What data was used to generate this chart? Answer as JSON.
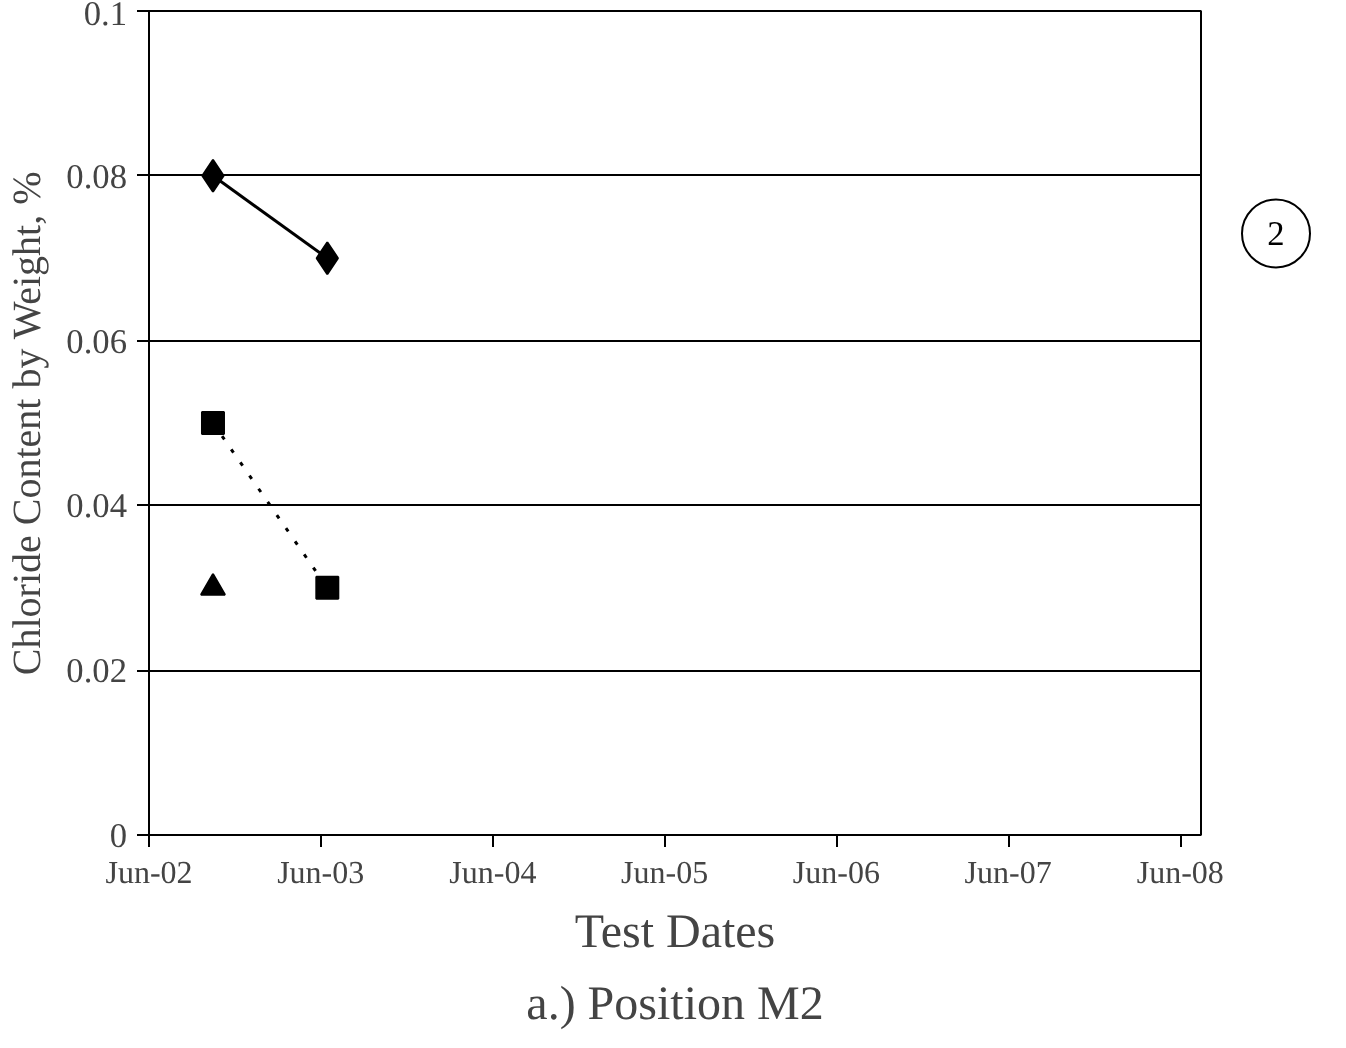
{
  "chart_data": {
    "type": "line",
    "title": "a.) Position M2",
    "xlabel": "Test Dates",
    "ylabel": "Chloride Content by Weight, %",
    "xlim": [
      "2002-06-01",
      "2008-07-15"
    ],
    "xticks": [
      {
        "value": "2002-06-01",
        "label": "Jun-02"
      },
      {
        "value": "2003-06-01",
        "label": "Jun-03"
      },
      {
        "value": "2004-06-01",
        "label": "Jun-04"
      },
      {
        "value": "2005-06-01",
        "label": "Jun-05"
      },
      {
        "value": "2006-06-01",
        "label": "Jun-06"
      },
      {
        "value": "2007-06-01",
        "label": "Jun-07"
      },
      {
        "value": "2008-06-01",
        "label": "Jun-08"
      }
    ],
    "ylim": [
      0,
      0.1
    ],
    "yticks": [
      0,
      0.02,
      0.04,
      0.06,
      0.08,
      0.1
    ],
    "grid": "y",
    "series": [
      {
        "color": "#000000",
        "marker": "diamond",
        "line_style": "solid",
        "x": [
          "2002-10-15",
          "2003-06-15"
        ],
        "values": [
          0.08,
          0.07
        ]
      },
      {
        "color": "#000000",
        "marker": "square",
        "line_style": "dotted",
        "x": [
          "2002-10-15",
          "2003-06-15"
        ],
        "values": [
          0.05,
          0.03
        ]
      },
      {
        "type": "scatter",
        "color": "#000000",
        "marker": "triangle",
        "x": [
          "2002-10-15"
        ],
        "values": [
          0.03
        ]
      }
    ],
    "annotations": [
      "2"
    ]
  }
}
